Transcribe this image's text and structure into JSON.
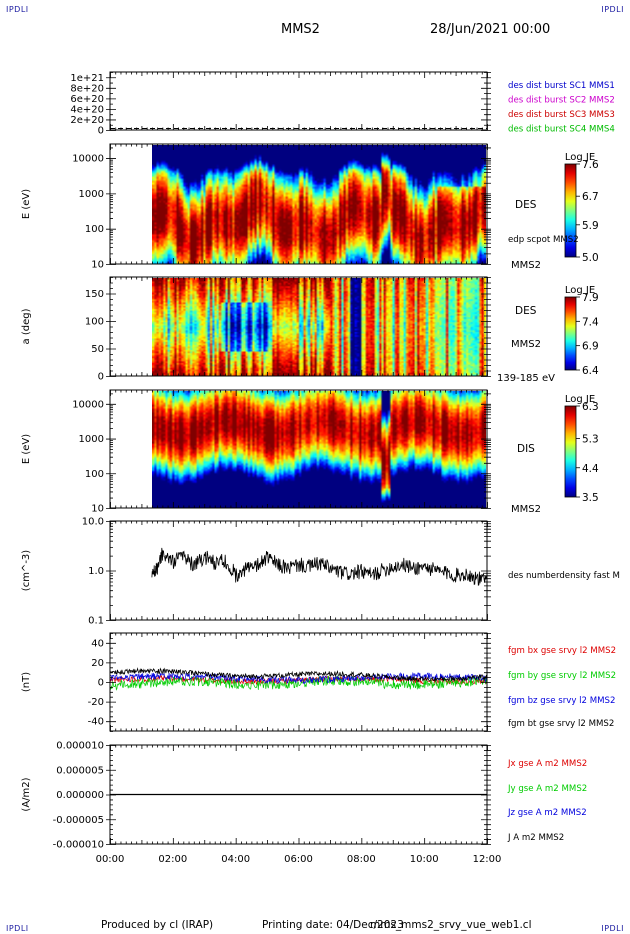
{
  "corner_labels": {
    "top_left": "IPDLI",
    "top_right": "IPDLI",
    "bottom_left": "IPDLI",
    "bottom_right": "IPDLI"
  },
  "header": {
    "spacecraft": "MMS2",
    "date": "28/Jun/2021 00:00"
  },
  "footer": {
    "produced_by": "Produced by cl (IRAP)",
    "printing_date": "Printing date: 04/Dec/2023",
    "file": "mms_mms2_srvy_vue_web1.cl"
  },
  "colors": {
    "mms1": "#0000cc",
    "mms2": "#cc00cc",
    "mms3": "#cc0000",
    "mms4": "#00bb00",
    "bx": "#dd0000",
    "by": "#00cc00",
    "bz": "#0000dd",
    "bt": "#000000"
  },
  "chart_data": [
    {
      "type": "line",
      "panel": "burst",
      "xlim": [
        "00:00",
        "12:00"
      ],
      "ylim": [
        0,
        1.1e+21
      ],
      "yticks": [
        "0",
        "2e+20",
        "4e+20",
        "6e+20",
        "8e+20",
        "1e+21"
      ],
      "series": [
        {
          "name": "des dist burst SC1 MMS1"
        },
        {
          "name": "des dist burst SC2 MMS2"
        },
        {
          "name": "des dist burst SC3 MMS3"
        },
        {
          "name": "des dist burst SC4 MMS4"
        }
      ]
    },
    {
      "type": "heatmap",
      "panel": "des-energy",
      "ylabel": "E (eV)",
      "yscale": "log",
      "ylim": [
        10,
        25000
      ],
      "yticks": [
        "10",
        "100",
        "1000",
        "10000"
      ],
      "data_start": "01:20",
      "label": "DES",
      "sublabel": "edp scpot MMS2",
      "bottom_label": "MMS2",
      "colorbar": {
        "title": "Log JE",
        "ticks": [
          "7.6",
          "6.7",
          "5.9",
          "5.0"
        ],
        "range": [
          5.0,
          7.6
        ]
      }
    },
    {
      "type": "heatmap",
      "panel": "des-pitch",
      "ylabel": "a (deg)",
      "ylim": [
        0,
        180
      ],
      "yticks": [
        "0",
        "50",
        "100",
        "150"
      ],
      "data_start": "01:20",
      "label": "DES",
      "sublabel": "MMS2",
      "bottom_label": "139-185 eV",
      "colorbar": {
        "title": "Log JE",
        "ticks": [
          "7.9",
          "7.4",
          "6.9",
          "6.4"
        ],
        "range": [
          6.4,
          7.9
        ]
      }
    },
    {
      "type": "heatmap",
      "panel": "dis-energy",
      "ylabel": "E (eV)",
      "yscale": "log",
      "ylim": [
        10,
        25000
      ],
      "yticks": [
        "10",
        "100",
        "1000",
        "10000"
      ],
      "data_start": "01:20",
      "label": "DIS",
      "bottom_label": "MMS2",
      "colorbar": {
        "title": "Log JE",
        "ticks": [
          "6.3",
          "5.3",
          "4.4",
          "3.5"
        ],
        "range": [
          3.5,
          6.3
        ]
      }
    },
    {
      "type": "line",
      "panel": "density",
      "ylabel": "(cm^-3)",
      "yscale": "log",
      "ylim": [
        0.1,
        10.0
      ],
      "yticks": [
        "0.1",
        "1.0",
        "10.0"
      ],
      "series": [
        {
          "name": "des numberdensity fast M",
          "x": [
            "01:20",
            "01:30",
            "01:40",
            "02:00",
            "02:20",
            "02:40",
            "03:00",
            "03:20",
            "03:40",
            "04:00",
            "04:20",
            "04:40",
            "05:00",
            "05:20",
            "05:40",
            "06:00",
            "06:20",
            "06:40",
            "07:00",
            "07:20",
            "07:40",
            "08:00",
            "08:20",
            "08:40",
            "09:00",
            "09:20",
            "09:40",
            "10:00",
            "10:20",
            "10:40",
            "11:00",
            "11:20",
            "11:40",
            "12:00"
          ],
          "y": [
            0.9,
            1.1,
            2.2,
            1.5,
            2.0,
            1.2,
            1.9,
            1.4,
            1.6,
            0.8,
            1.1,
            1.2,
            1.8,
            1.3,
            1.1,
            1.3,
            1.2,
            1.4,
            1.1,
            0.9,
            0.85,
            0.95,
            0.8,
            1.0,
            1.2,
            1.3,
            1.1,
            1.2,
            1.0,
            0.9,
            0.8,
            0.85,
            0.7,
            0.6
          ]
        }
      ]
    },
    {
      "type": "line",
      "panel": "magnetic-field",
      "ylabel": "(nT)",
      "ylim": [
        -50,
        50
      ],
      "yticks": [
        "-40",
        "-20",
        "0",
        "20",
        "40"
      ],
      "series": [
        {
          "name": "fgm bx gse srvy l2 MMS2"
        },
        {
          "name": "fgm by gse srvy l2 MMS2"
        },
        {
          "name": "fgm bz gse srvy l2 MMS2"
        },
        {
          "name": "fgm bt gse srvy l2 MMS2"
        }
      ]
    },
    {
      "type": "line",
      "panel": "current-density",
      "ylabel": "(A/m2)",
      "ylim": [
        -1e-05,
        1e-05
      ],
      "yticks": [
        "0.000010",
        "0.000005",
        "0.000000",
        "-0.000005",
        "-0.000010"
      ],
      "xticks": [
        "00:00",
        "02:00",
        "04:00",
        "06:00",
        "08:00",
        "10:00",
        "12:00"
      ],
      "series": [
        {
          "name": "Jx gse A m2 MMS2"
        },
        {
          "name": "Jy gse A m2 MMS2"
        },
        {
          "name": "Jz gse A m2 MMS2"
        },
        {
          "name": "J A m2 MMS2"
        }
      ]
    }
  ]
}
